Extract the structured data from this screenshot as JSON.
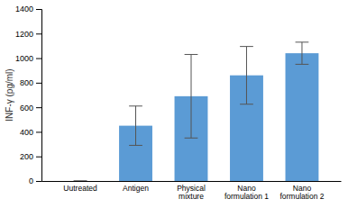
{
  "chart_data": {
    "type": "bar",
    "categories": [
      "Uutreated",
      "Antigen",
      "Physical\nmixture",
      "Nano\nformulation 1",
      "Nano\nformulation 2"
    ],
    "values": [
      0,
      450,
      690,
      860,
      1040
    ],
    "errors": [
      0,
      160,
      340,
      235,
      90
    ],
    "color": "#5B9BD5",
    "ylabel": "INF-γ (pg/ml)",
    "ylim": [
      0,
      1400
    ],
    "yticks": [
      0,
      200,
      400,
      600,
      800,
      1000,
      1200,
      1400
    ],
    "grid": false
  }
}
